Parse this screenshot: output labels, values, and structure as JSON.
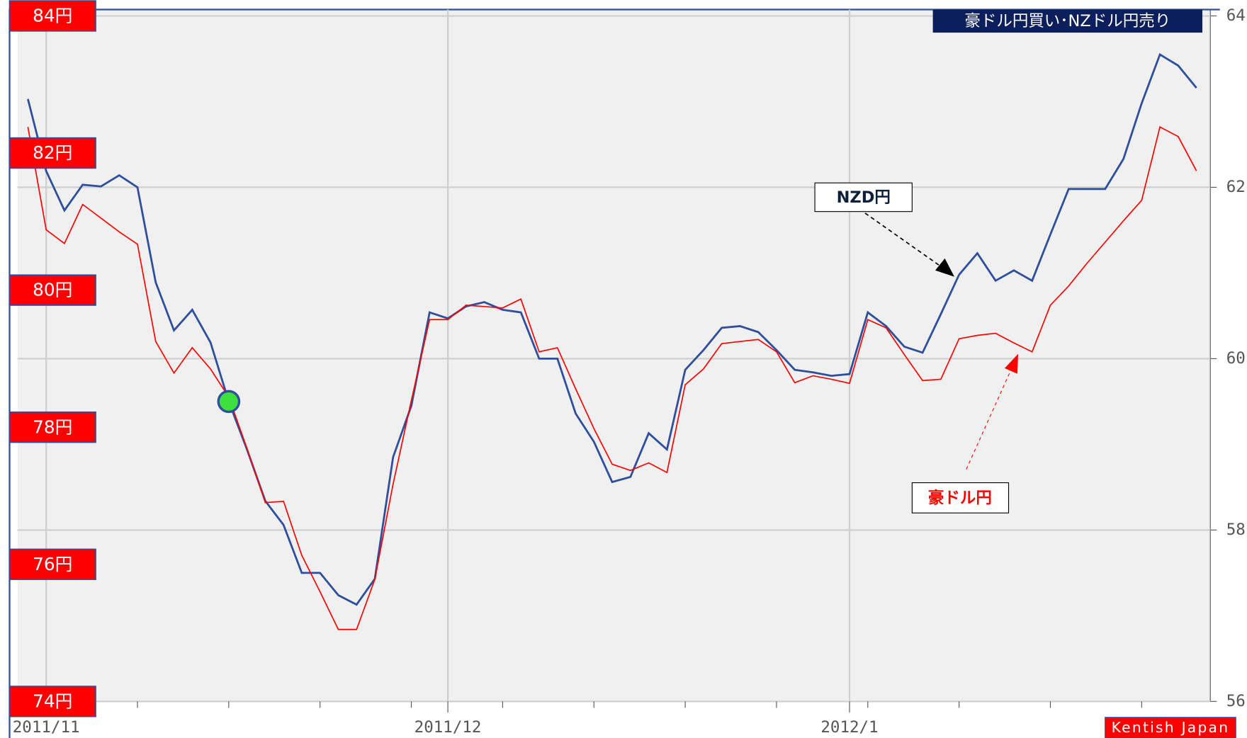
{
  "chart_data": {
    "type": "line",
    "title": "豪ドル円買い･NZドル円売り",
    "annotations": [
      "NZD円",
      "豪ドル円"
    ],
    "credit": "Kentish Japan",
    "categories": [
      null,
      "2011/11",
      null,
      null,
      null,
      null,
      null,
      null,
      null,
      null,
      null,
      null,
      null,
      null,
      null,
      null,
      null,
      null,
      null,
      null,
      null,
      null,
      null,
      "2011/12",
      null,
      null,
      null,
      null,
      null,
      null,
      null,
      null,
      null,
      null,
      null,
      null,
      null,
      null,
      null,
      null,
      null,
      null,
      null,
      null,
      null,
      "2012/1",
      null,
      null,
      null,
      null,
      null,
      null,
      null,
      null,
      null,
      null,
      null,
      null,
      null,
      null,
      null,
      null,
      null,
      null,
      null
    ],
    "series": [
      {
        "name": "NZD円",
        "color": "#2e4f9e",
        "axis": "y2",
        "values": [
          63.03,
          62.19,
          61.73,
          62.03,
          62.01,
          62.14,
          62.0,
          60.89,
          60.33,
          60.57,
          60.19,
          59.5,
          58.94,
          58.34,
          58.06,
          57.5,
          57.5,
          57.24,
          57.13,
          57.43,
          58.85,
          59.45,
          60.54,
          60.47,
          60.61,
          60.66,
          60.57,
          60.54,
          60.0,
          60.0,
          59.36,
          59.03,
          58.56,
          58.62,
          59.13,
          58.94,
          59.87,
          60.1,
          60.36,
          60.38,
          60.31,
          60.1,
          59.87,
          59.84,
          59.8,
          59.82,
          60.54,
          60.38,
          60.14,
          60.07,
          60.52,
          60.98,
          61.23,
          60.91,
          61.03,
          60.91,
          61.45,
          61.98,
          61.98,
          61.98,
          62.33,
          62.98,
          63.55,
          63.42,
          63.16
        ]
      },
      {
        "name": "豪ドル円",
        "color": "#ff0000",
        "values": [
          82.38,
          80.88,
          80.68,
          81.25,
          81.05,
          80.85,
          80.67,
          79.25,
          78.79,
          79.16,
          78.85,
          78.44,
          77.69,
          76.9,
          76.92,
          76.13,
          75.6,
          75.05,
          75.05,
          75.78,
          77.17,
          78.39,
          79.57,
          79.57,
          79.78,
          79.76,
          79.74,
          79.87,
          79.1,
          79.16,
          78.56,
          77.98,
          77.46,
          77.37,
          77.48,
          77.34,
          78.62,
          78.85,
          79.22,
          79.25,
          79.28,
          79.1,
          78.65,
          78.75,
          78.7,
          78.64,
          79.57,
          79.45,
          79.06,
          78.68,
          78.7,
          79.29,
          79.34,
          79.37,
          79.23,
          79.1,
          79.78,
          80.06,
          80.39,
          80.7,
          81.01,
          81.31,
          82.38,
          82.24,
          81.74
        ]
      }
    ],
    "ylim": [
      74,
      84
    ],
    "yticks": [
      {
        "value": 74,
        "label": "74円"
      },
      {
        "value": 76,
        "label": "76円"
      },
      {
        "value": 78,
        "label": "78円"
      },
      {
        "value": 80,
        "label": "80円"
      },
      {
        "value": 82,
        "label": "82円"
      },
      {
        "value": 84,
        "label": "84円"
      }
    ],
    "y2lim": [
      56,
      64
    ],
    "y2ticks": [
      56,
      58,
      60,
      62,
      64
    ],
    "grid": true
  }
}
